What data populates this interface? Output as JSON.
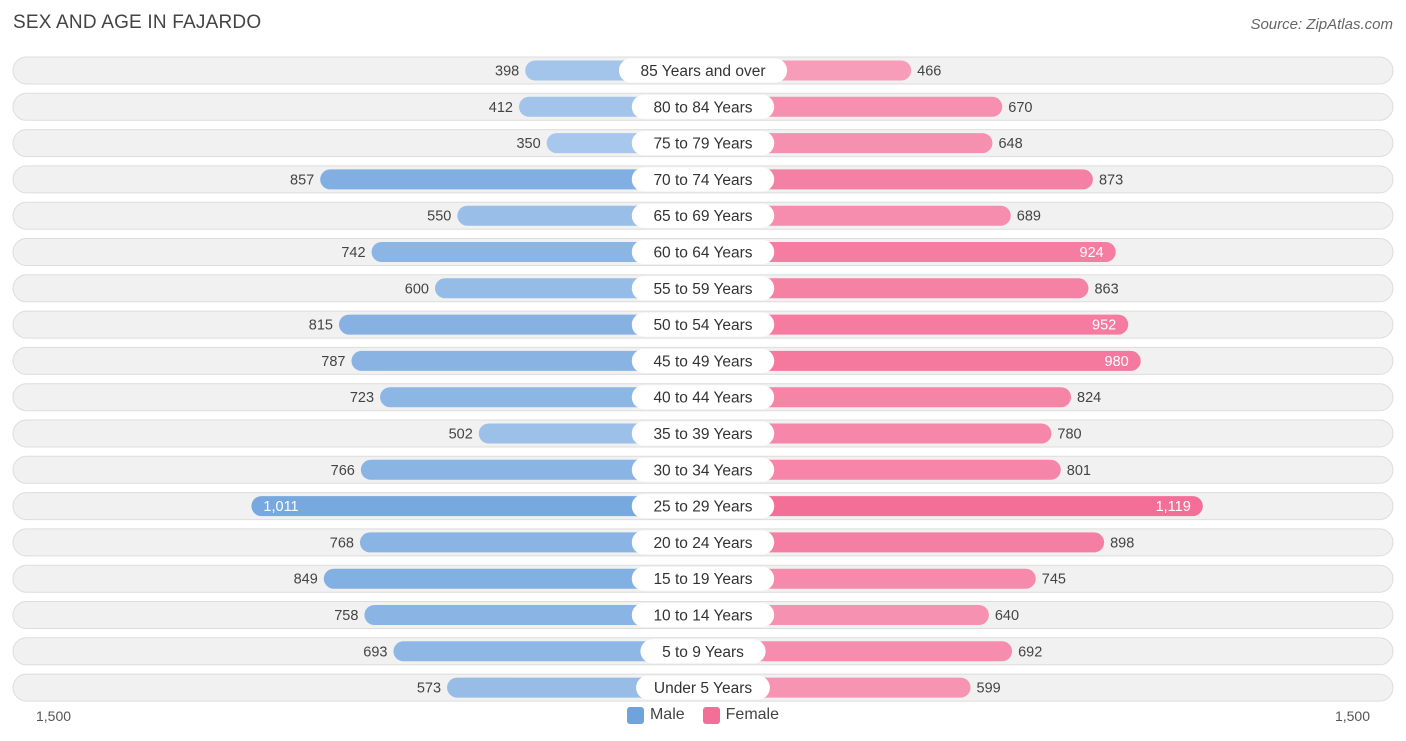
{
  "header": {
    "title": "SEX AND AGE IN FAJARDO",
    "source": "Source: ZipAtlas.com"
  },
  "colors": {
    "male": "#6fa3dc",
    "male_light": "#a9c8ec",
    "female": "#f46f98",
    "female_light": "#f8a6c1",
    "row_bg": "#f1f1f1",
    "row_border": "#dddddd"
  },
  "axis": {
    "left_label": "1,500",
    "right_label": "1,500"
  },
  "legend": {
    "male_label": "Male",
    "female_label": "Female"
  },
  "chart_data": {
    "type": "bar",
    "orientation": "horizontal-diverging",
    "categories": [
      "85 Years and over",
      "80 to 84 Years",
      "75 to 79 Years",
      "70 to 74 Years",
      "65 to 69 Years",
      "60 to 64 Years",
      "55 to 59 Years",
      "50 to 54 Years",
      "45 to 49 Years",
      "40 to 44 Years",
      "35 to 39 Years",
      "30 to 34 Years",
      "25 to 29 Years",
      "20 to 24 Years",
      "15 to 19 Years",
      "10 to 14 Years",
      "5 to 9 Years",
      "Under 5 Years"
    ],
    "series": [
      {
        "name": "Male",
        "values": [
          398,
          412,
          350,
          857,
          550,
          742,
          600,
          815,
          787,
          723,
          502,
          766,
          1011,
          768,
          849,
          758,
          693,
          573
        ],
        "labels": [
          "398",
          "412",
          "350",
          "857",
          "550",
          "742",
          "600",
          "815",
          "787",
          "723",
          "502",
          "766",
          "1,011",
          "768",
          "849",
          "758",
          "693",
          "573"
        ]
      },
      {
        "name": "Female",
        "values": [
          466,
          670,
          648,
          873,
          689,
          924,
          863,
          952,
          980,
          824,
          780,
          801,
          1119,
          898,
          745,
          640,
          692,
          599
        ],
        "labels": [
          "466",
          "670",
          "648",
          "873",
          "689",
          "924",
          "863",
          "952",
          "980",
          "824",
          "780",
          "801",
          "1,119",
          "898",
          "745",
          "640",
          "692",
          "599"
        ]
      }
    ],
    "xlim": [
      -1500,
      1500
    ],
    "legend_position": "bottom-center",
    "grid": false
  }
}
